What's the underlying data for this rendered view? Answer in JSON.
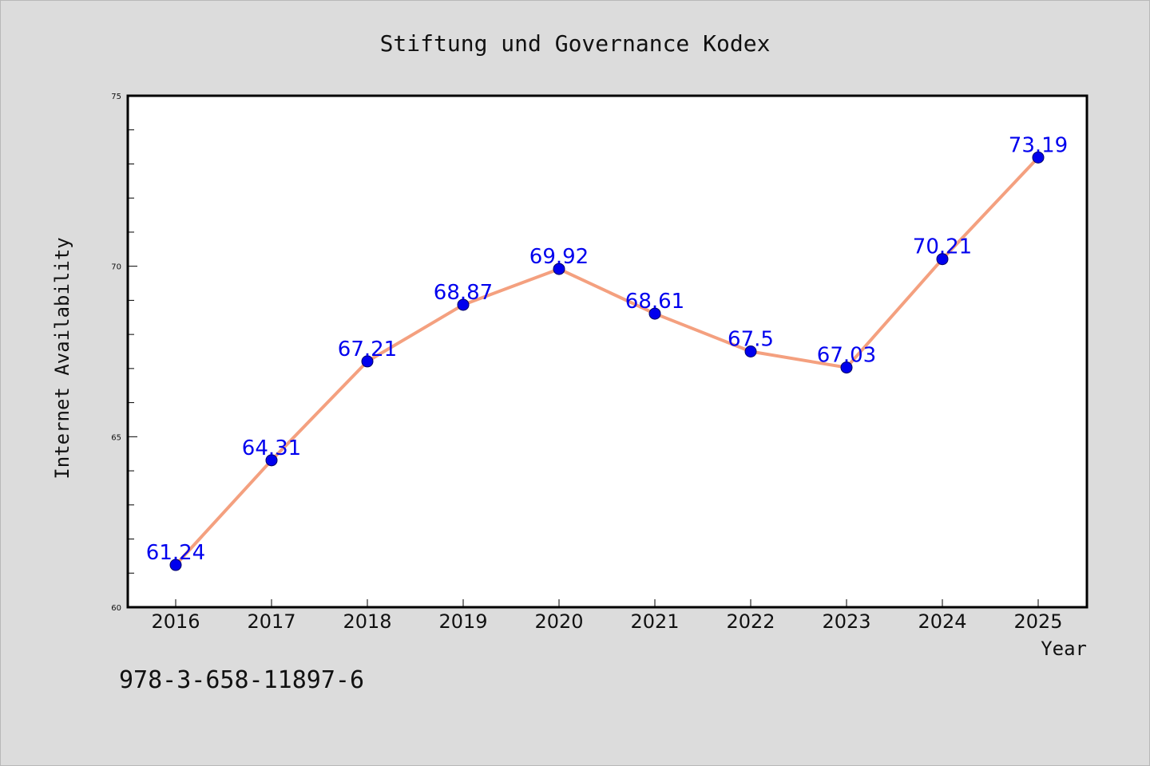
{
  "colors": {
    "background": "#dcdcdc",
    "plot_background": "#ffffff",
    "line": "#f4a07f",
    "marker": "#0000ee",
    "data_label": "#0000ee",
    "axis": "#000000"
  },
  "chart_data": {
    "type": "line",
    "title": "Stiftung und Governance Kodex",
    "xlabel": "Year",
    "ylabel": "Internet Availability",
    "categories": [
      "2016",
      "2017",
      "2018",
      "2019",
      "2020",
      "2021",
      "2022",
      "2023",
      "2024",
      "2025"
    ],
    "series": [
      {
        "values": [
          61.24,
          64.31,
          67.21,
          68.87,
          69.92,
          68.61,
          67.5,
          67.03,
          70.21,
          73.19
        ],
        "data_labels": [
          "61.24",
          "64.31",
          "67.21",
          "68.87",
          "69.92",
          "68.61",
          "67.5",
          "67.03",
          "70.21",
          "73.19"
        ]
      }
    ],
    "ylim": [
      60,
      75
    ],
    "yticks": [
      60,
      65,
      70,
      75
    ],
    "ytick_labels": [
      "60",
      "65",
      "70",
      "75"
    ],
    "y_minor_step": 1,
    "grid": false,
    "legend": "none"
  },
  "footer": {
    "isbn": "978-3-658-11897-6"
  }
}
